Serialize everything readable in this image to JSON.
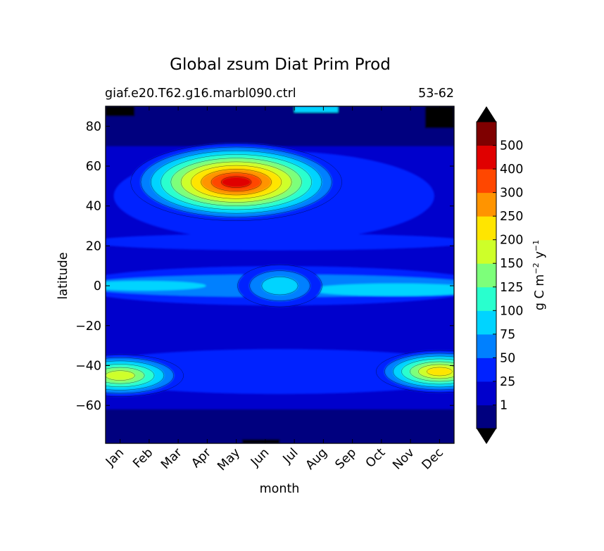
{
  "chart_data": {
    "type": "filled-contour",
    "title": "Global zsum Diat Prim Prod",
    "subtitle_left": "giaf.e20.T62.g16.marbl090.ctrl",
    "subtitle_right": "53-62",
    "xlabel": "month",
    "ylabel": "latitude",
    "x_categories": [
      "Jan",
      "Feb",
      "Mar",
      "Apr",
      "May",
      "Jun",
      "Jul",
      "Aug",
      "Sep",
      "Oct",
      "Nov",
      "Dec"
    ],
    "xlim": [
      0.5,
      12.5
    ],
    "ylim": [
      -79,
      90
    ],
    "y_ticks": [
      80,
      60,
      40,
      20,
      0,
      -20,
      -40,
      -60
    ],
    "y_tick_labels": [
      "80",
      "60",
      "40",
      "20",
      "0",
      "−20",
      "−40",
      "−60"
    ],
    "colorbar": {
      "label": "g C m−2 y−1",
      "label_parts": {
        "main": "g C m",
        "exp1": "−2",
        "mid": "y",
        "exp2": "−1"
      },
      "levels": [
        0,
        1,
        25,
        50,
        75,
        100,
        125,
        150,
        200,
        250,
        300,
        400,
        500,
        600
      ],
      "tick_labels": [
        "1",
        "25",
        "50",
        "75",
        "100",
        "125",
        "150",
        "200",
        "250",
        "300",
        "400",
        "500"
      ],
      "colors": [
        "#00007f",
        "#0000cc",
        "#0022ff",
        "#0080ff",
        "#00d4ff",
        "#29ffce",
        "#7dff7a",
        "#ceff29",
        "#ffe500",
        "#ff9400",
        "#ff4700",
        "#e00000",
        "#7f0000"
      ],
      "extend": "both",
      "under_color": "#000000",
      "over_color": "#000000"
    },
    "features": [
      {
        "month_range": [
          0.5,
          1.5
        ],
        "lat_range": [
          85,
          90
        ],
        "value": 0
      },
      {
        "month_range": [
          11.5,
          12.5
        ],
        "lat_range": [
          79,
          90
        ],
        "value": 0
      },
      {
        "month_range": [
          5.2,
          6.5
        ],
        "lat_range": [
          -79,
          -77
        ],
        "value": 0
      },
      {
        "month_range": [
          7,
          8.5
        ],
        "lat_range": [
          87,
          90
        ],
        "value": 75
      },
      {
        "center": [
          5.0,
          52
        ],
        "peak": 420,
        "note": "northern spring bloom"
      },
      {
        "center": [
          12.0,
          -43
        ],
        "peak": 220,
        "note": "southern summer bloom"
      },
      {
        "center": [
          1.0,
          -45
        ],
        "peak": 175,
        "note": "southern summer bloom"
      },
      {
        "center": [
          6.5,
          0
        ],
        "peak": 85,
        "note": "equatorial band"
      }
    ]
  }
}
